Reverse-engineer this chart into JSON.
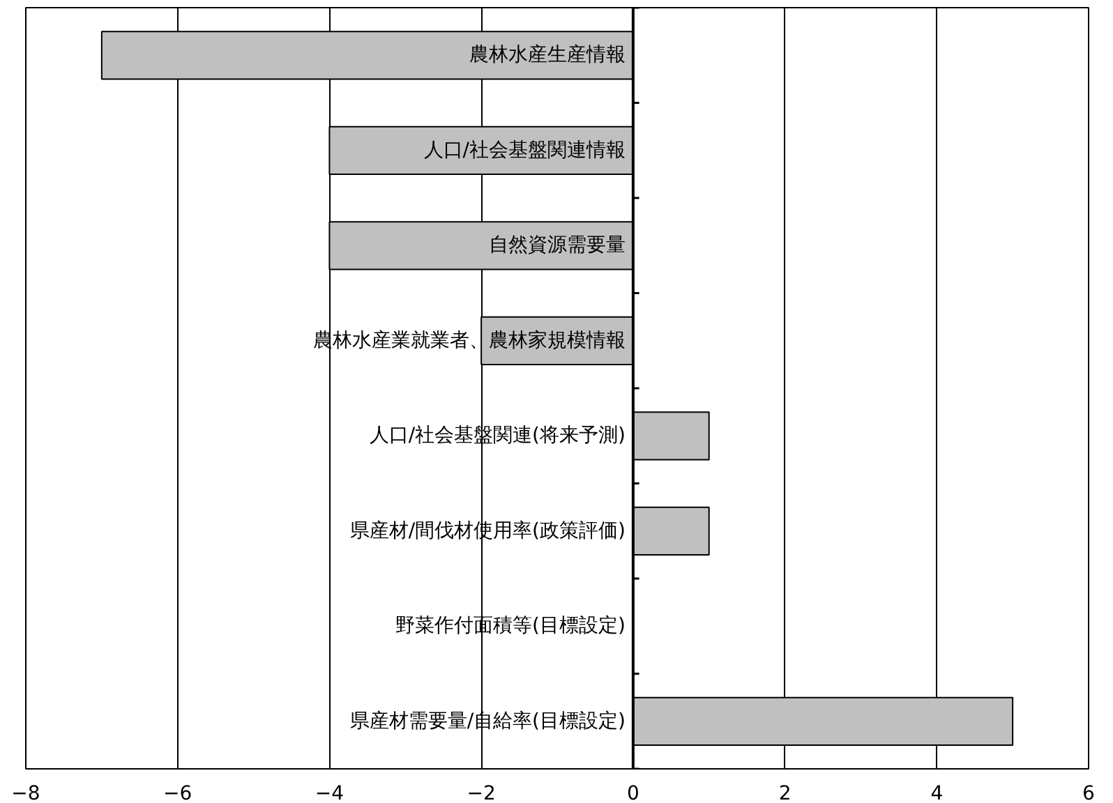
{
  "chart_data": {
    "type": "bar",
    "orientation": "horizontal",
    "categories": [
      "農林水産生産情報",
      "人口/社会基盤関連情報",
      "自然資源需要量",
      "農林水産業就業者、農林家規模情報",
      "人口/社会基盤関連(将来予測)",
      "県産材/間伐材使用率(政策評価)",
      "野菜作付面積等(目標設定)",
      "県産材需要量/自給率(目標設定)"
    ],
    "values": [
      -7,
      -4,
      -4,
      -2,
      1,
      1,
      0,
      5
    ],
    "color": "#c0c0c0",
    "xlim": [
      -8,
      6
    ],
    "xticks": [
      -8,
      -6,
      -4,
      -2,
      0,
      2,
      4,
      6
    ],
    "grid": "x"
  }
}
